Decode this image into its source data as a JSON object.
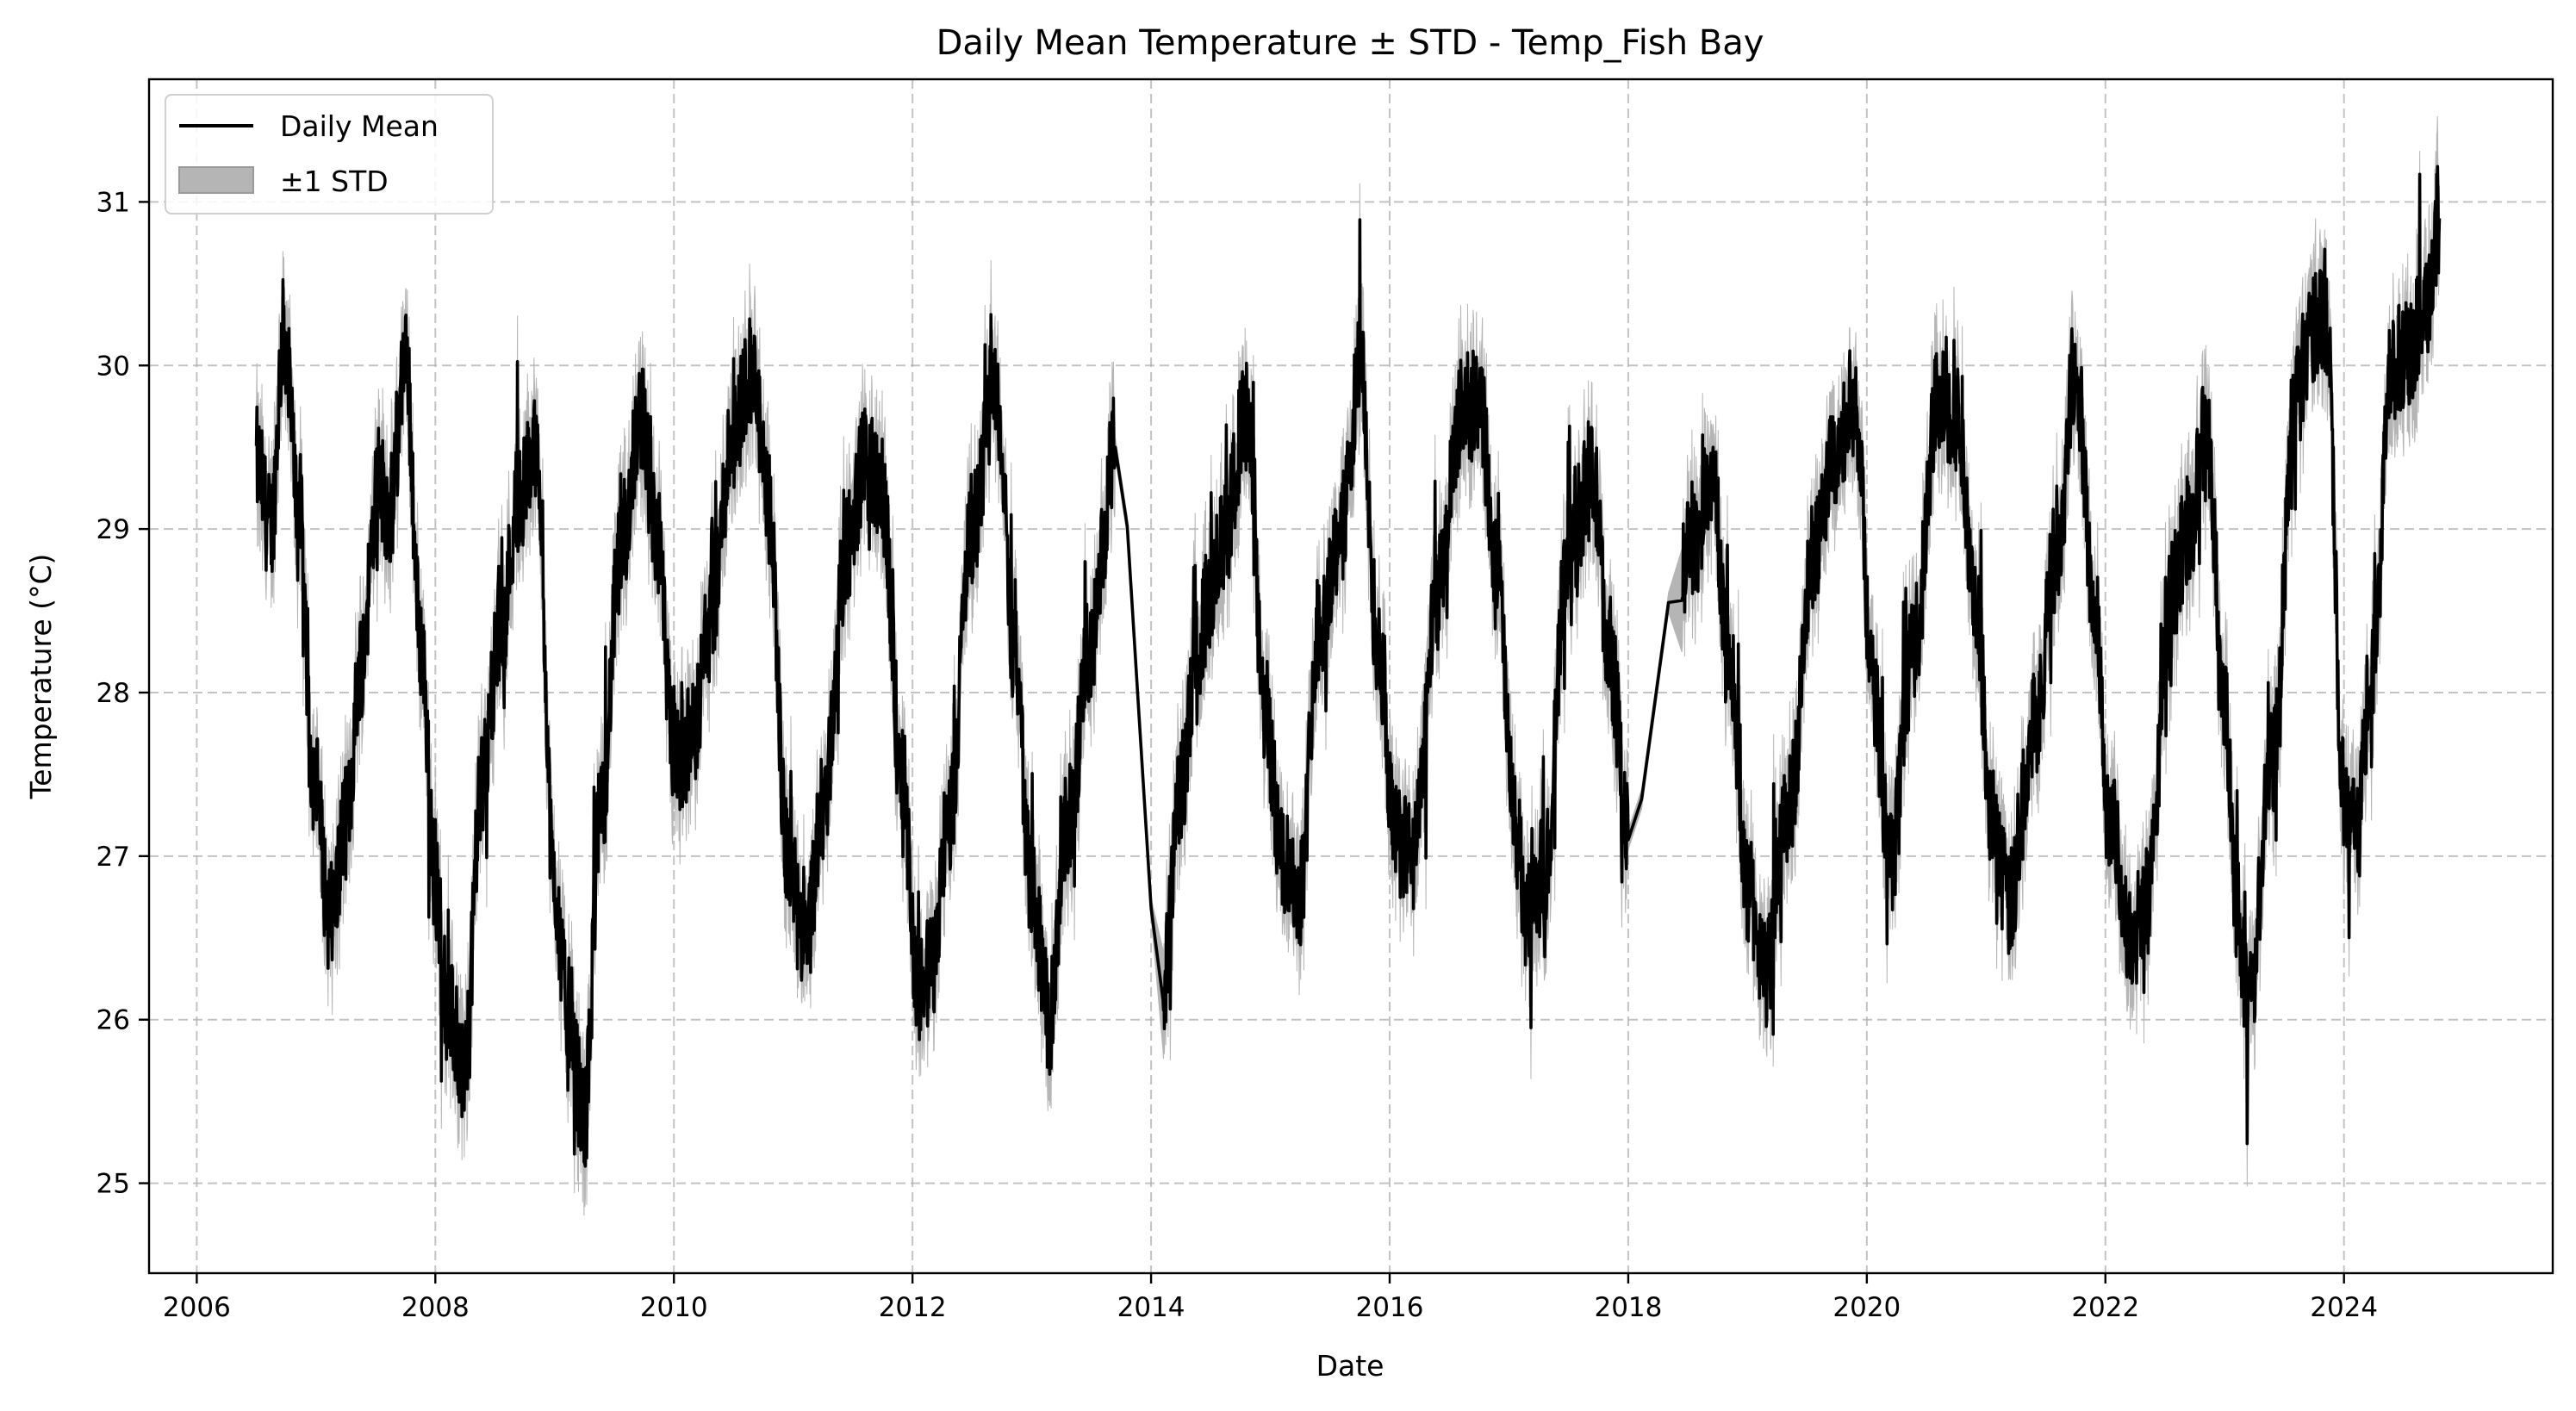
{
  "chart_data": {
    "type": "line",
    "title": "Daily Mean Temperature ± STD - Temp_Fish Bay",
    "xlabel": "Date",
    "ylabel": "Temperature (°C)",
    "xlim": [
      2005.6,
      2025.75
    ],
    "ylim": [
      24.45,
      31.75
    ],
    "x_ticks": [
      2006,
      2008,
      2010,
      2012,
      2014,
      2016,
      2018,
      2020,
      2022,
      2024
    ],
    "y_ticks": [
      25,
      26,
      27,
      28,
      29,
      30,
      31
    ],
    "grid": true,
    "legend": {
      "placement": "top-left",
      "entries": [
        {
          "label": "Daily Mean",
          "kind": "line",
          "color": "#000000"
        },
        {
          "label": "±1 STD",
          "kind": "band",
          "color": "#b5b5b5"
        }
      ]
    },
    "series_color": "#000000",
    "band_color": "#b5b5b5",
    "mean_anchor_points": {
      "x": [
        2006.5,
        2006.62,
        2006.73,
        2006.85,
        2006.98,
        2007.12,
        2007.25,
        2007.38,
        2007.52,
        2007.62,
        2007.75,
        2007.88,
        2008.0,
        2008.12,
        2008.25,
        2008.38,
        2008.55,
        2008.7,
        2008.85,
        2009.0,
        2009.1,
        2009.25,
        2009.38,
        2009.55,
        2009.72,
        2009.85,
        2010.0,
        2010.15,
        2010.3,
        2010.5,
        2010.65,
        2010.8,
        2010.95,
        2011.1,
        2011.25,
        2011.45,
        2011.6,
        2011.75,
        2011.9,
        2012.05,
        2012.15,
        2012.3,
        2012.5,
        2012.7,
        2012.85,
        2013.0,
        2013.15,
        2013.3,
        2013.5,
        2013.7,
        2014.1,
        2014.25,
        2014.4,
        2014.6,
        2014.8,
        2014.95,
        2015.1,
        2015.25,
        2015.4,
        2015.6,
        2015.75,
        2015.9,
        2016.05,
        2016.2,
        2016.4,
        2016.6,
        2016.75,
        2016.9,
        2017.05,
        2017.15,
        2017.3,
        2017.5,
        2017.7,
        2017.85,
        2018.0,
        2018.45,
        2018.55,
        2018.7,
        2018.85,
        2019.0,
        2019.15,
        2019.35,
        2019.55,
        2019.75,
        2019.9,
        2020.05,
        2020.2,
        2020.4,
        2020.6,
        2020.75,
        2020.9,
        2021.05,
        2021.2,
        2021.4,
        2021.6,
        2021.75,
        2021.9,
        2022.05,
        2022.2,
        2022.35,
        2022.55,
        2022.7,
        2022.85,
        2023.0,
        2023.1,
        2023.2,
        2023.4,
        2023.6,
        2023.72,
        2023.85,
        2024.0,
        2024.1,
        2024.25,
        2024.4,
        2024.55,
        2024.7,
        2024.8
      ],
      "y": [
        29.4,
        29.0,
        30.2,
        29.2,
        27.5,
        26.6,
        27.2,
        28.2,
        29.3,
        29.1,
        30.0,
        28.3,
        26.8,
        26.0,
        25.7,
        27.4,
        28.4,
        29.2,
        29.5,
        26.8,
        26.1,
        25.4,
        27.2,
        28.8,
        29.7,
        29.0,
        27.6,
        27.7,
        28.4,
        29.6,
        30.0,
        29.1,
        27.0,
        26.4,
        27.3,
        28.9,
        29.4,
        29.2,
        27.6,
        26.2,
        26.3,
        27.2,
        29.0,
        29.9,
        28.3,
        26.8,
        26.0,
        27.2,
        28.3,
        29.5,
        26.2,
        27.4,
        28.4,
        28.9,
        29.7,
        27.9,
        27.0,
        26.8,
        28.4,
        29.0,
        30.0,
        28.3,
        27.1,
        27.0,
        28.6,
        29.7,
        29.8,
        28.7,
        27.2,
        26.6,
        26.9,
        28.9,
        29.3,
        28.2,
        27.1,
        28.8,
        28.9,
        29.3,
        28.2,
        26.8,
        26.3,
        27.3,
        28.8,
        29.5,
        29.8,
        28.0,
        27.0,
        28.3,
        29.8,
        29.7,
        28.6,
        27.2,
        26.7,
        27.8,
        28.9,
        30.0,
        28.6,
        27.2,
        26.5,
        26.7,
        28.6,
        29.0,
        29.6,
        27.9,
        26.7,
        26.1,
        27.6,
        29.8,
        30.2,
        30.3,
        27.4,
        27.2,
        28.2,
        30.0,
        30.1,
        30.4,
        30.9
      ]
    }
  }
}
